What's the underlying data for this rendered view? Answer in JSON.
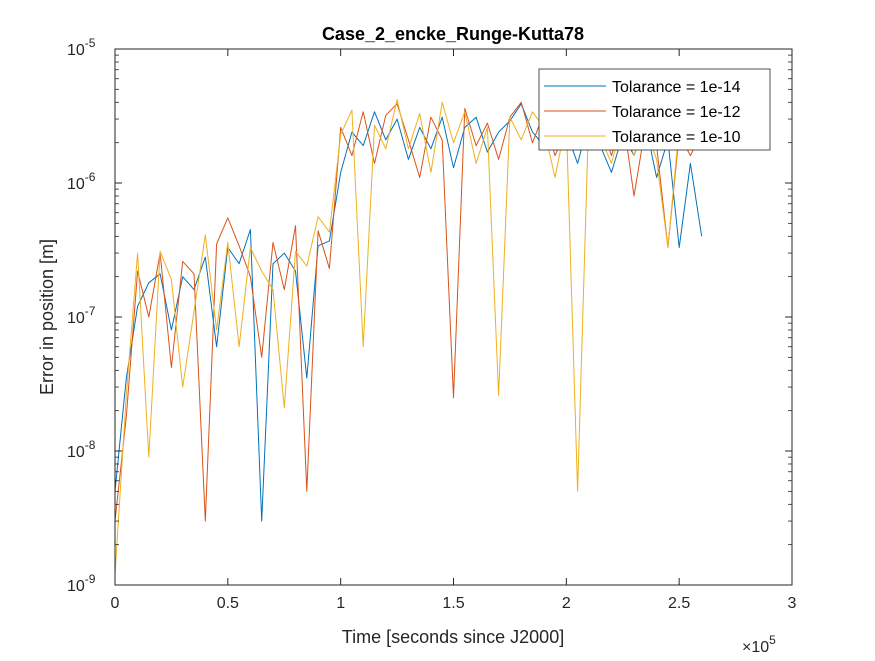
{
  "chart_data": {
    "type": "line",
    "title": "Case_2_encke_Runge-Kutta78",
    "xlabel": "Time [seconds since J2000]",
    "ylabel": "Error in position [m]",
    "x_scale": "linear",
    "y_scale": "log",
    "xlim": [
      0,
      300000
    ],
    "ylim": [
      1e-09,
      1e-05
    ],
    "x_ticks": [
      0,
      50000,
      100000,
      150000,
      200000,
      250000,
      300000
    ],
    "x_tick_labels": [
      "0",
      "0.5",
      "1",
      "1.5",
      "2",
      "2.5",
      "3"
    ],
    "x_exponent_label": {
      "base": "×10",
      "exp": "5"
    },
    "y_ticks": [
      1e-09,
      1e-08,
      1e-07,
      1e-06,
      1e-05
    ],
    "y_tick_labels": [
      {
        "base": "10",
        "exp": "-9"
      },
      {
        "base": "10",
        "exp": "-8"
      },
      {
        "base": "10",
        "exp": "-7"
      },
      {
        "base": "10",
        "exp": "-6"
      },
      {
        "base": "10",
        "exp": "-5"
      }
    ],
    "grid": false,
    "legend_position": "top-right",
    "colors": {
      "axis": "#262626",
      "text": "#262626"
    },
    "series": [
      {
        "name": "Tolarance = 1e-14",
        "color": "#0072BD",
        "x": [
          0,
          5000,
          10000,
          15000,
          20000,
          25000,
          30000,
          35000,
          40000,
          45000,
          50000,
          55000,
          60000,
          65000,
          70000,
          75000,
          80000,
          85000,
          90000,
          95000,
          100000,
          105000,
          110000,
          115000,
          120000,
          125000,
          130000,
          135000,
          140000,
          145000,
          150000,
          155000,
          160000,
          165000,
          170000,
          175000,
          180000,
          185000,
          190000,
          195000,
          200000,
          205000,
          210000,
          215000,
          220000,
          225000,
          230000,
          235000,
          240000,
          245000,
          250000,
          255000,
          260000
        ],
        "y": [
          5e-09,
          3.5e-08,
          1.2e-07,
          1.8e-07,
          2.1e-07,
          8e-08,
          2e-07,
          1.6e-07,
          2.8e-07,
          6e-08,
          3.3e-07,
          2.5e-07,
          4.5e-07,
          3e-09,
          2.5e-07,
          3e-07,
          2.2e-07,
          3.5e-08,
          3.4e-07,
          3.7e-07,
          1.2e-06,
          2.4e-06,
          1.9e-06,
          3.4e-06,
          2.1e-06,
          3e-06,
          1.5e-06,
          2.6e-06,
          1.8e-06,
          3.1e-06,
          1.3e-06,
          2.6e-06,
          3.1e-06,
          1.7e-06,
          2.4e-06,
          2.9e-06,
          3.9e-06,
          2.4e-06,
          1.9e-06,
          3.4e-06,
          2.4e-06,
          1.4e-06,
          2.9e-06,
          1.9e-06,
          1.2e-06,
          2.3e-06,
          1.6e-06,
          2.8e-06,
          1.1e-06,
          2.1e-06,
          3.3e-07,
          1.4e-06,
          4e-07
        ]
      },
      {
        "name": "Tolarance = 1e-12",
        "color": "#D95319",
        "x": [
          0,
          5000,
          10000,
          15000,
          20000,
          25000,
          30000,
          35000,
          40000,
          45000,
          50000,
          55000,
          60000,
          65000,
          70000,
          75000,
          80000,
          85000,
          90000,
          95000,
          100000,
          105000,
          110000,
          115000,
          120000,
          125000,
          130000,
          135000,
          140000,
          145000,
          150000,
          155000,
          160000,
          165000,
          170000,
          175000,
          180000,
          185000,
          190000,
          195000,
          200000,
          205000,
          210000,
          215000,
          220000,
          225000,
          230000,
          235000,
          240000,
          245000,
          250000,
          255000,
          260000
        ],
        "y": [
          3e-09,
          1.8e-08,
          2.2e-07,
          1e-07,
          3e-07,
          4.2e-08,
          2.6e-07,
          2.1e-07,
          3e-09,
          3.5e-07,
          5.5e-07,
          3.4e-07,
          2e-07,
          5e-08,
          3.6e-07,
          1.6e-07,
          4.8e-07,
          5e-09,
          4.4e-07,
          2.3e-07,
          2.6e-06,
          1.6e-06,
          3.4e-06,
          1.4e-06,
          3.2e-06,
          3.9e-06,
          2.1e-06,
          1.1e-06,
          3.1e-06,
          2.1e-06,
          2.5e-08,
          3.6e-06,
          1.9e-06,
          2.8e-06,
          1.5e-06,
          3.1e-06,
          4e-06,
          2e-06,
          3.3e-06,
          1.6e-06,
          2.5e-06,
          3.7e-06,
          1.8e-06,
          2.9e-06,
          1.6e-06,
          3.2e-06,
          8e-07,
          2.6e-06,
          1.9e-06,
          3.3e-07,
          2.3e-06,
          1.6e-06,
          2.4e-06
        ]
      },
      {
        "name": "Tolarance = 1e-10",
        "color": "#EDB120",
        "x": [
          0,
          5000,
          10000,
          15000,
          20000,
          25000,
          30000,
          35000,
          40000,
          45000,
          50000,
          55000,
          60000,
          65000,
          70000,
          75000,
          80000,
          85000,
          90000,
          95000,
          100000,
          105000,
          110000,
          115000,
          120000,
          125000,
          130000,
          135000,
          140000,
          145000,
          150000,
          155000,
          160000,
          165000,
          170000,
          175000,
          180000,
          185000,
          190000,
          195000,
          200000,
          205000,
          210000,
          215000,
          220000,
          225000,
          230000,
          235000,
          240000,
          245000,
          250000,
          255000,
          260000
        ],
        "y": [
          1.2e-09,
          2.6e-08,
          3e-07,
          9e-09,
          3.1e-07,
          1.9e-07,
          3e-08,
          1.1e-07,
          4.1e-07,
          8e-08,
          3.6e-07,
          6e-08,
          3.3e-07,
          2.2e-07,
          1.6e-07,
          2.1e-08,
          3.1e-07,
          2.4e-07,
          5.6e-07,
          4.3e-07,
          2.3e-06,
          3.5e-06,
          6e-08,
          2.7e-06,
          1.8e-06,
          4.2e-06,
          1.8e-06,
          3.3e-06,
          1.2e-06,
          4e-06,
          2e-06,
          3.4e-06,
          1.4e-06,
          2.6e-06,
          2.6e-08,
          3.1e-06,
          2.1e-06,
          3.4e-06,
          2.6e-06,
          1.1e-06,
          2.9e-06,
          5e-09,
          3.5e-06,
          2.2e-06,
          1.4e-06,
          2.9e-06,
          1.6e-06,
          2.6e-06,
          1.5e-06,
          3.3e-07,
          2.6e-06,
          1.8e-06,
          2.5e-06
        ]
      }
    ]
  }
}
